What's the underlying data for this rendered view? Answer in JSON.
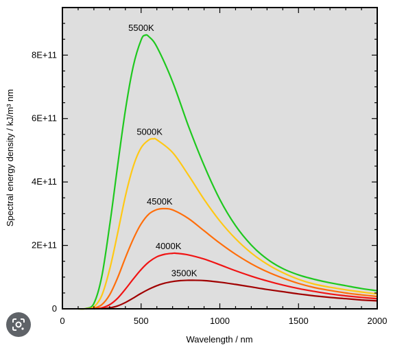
{
  "chart_data": {
    "type": "line",
    "title": "",
    "xlabel": "Wavelength / nm",
    "ylabel": "Spectral energy density / kJ/m³ nm",
    "xlim": [
      0,
      2000
    ],
    "ylim": [
      0,
      950000000000
    ],
    "xticks": [
      0,
      500,
      1000,
      1500,
      2000
    ],
    "xtick_labels": [
      "0",
      "500",
      "1000",
      "1500",
      "2000"
    ],
    "yticks": [
      0,
      200000000000,
      400000000000,
      600000000000,
      800000000000
    ],
    "ytick_labels": [
      "0",
      "2E+11",
      "4E+11",
      "6E+11",
      "8E+11"
    ],
    "background": "#dedede",
    "grid": false,
    "legend": "inline labels at curve peaks",
    "series": [
      {
        "name": "5500K",
        "temperature_K": 5500,
        "color": "#1ec81e",
        "x": [
          100,
          150,
          200,
          250,
          300,
          350,
          400,
          450,
          500,
          527,
          550,
          600,
          700,
          800,
          900,
          1000,
          1100,
          1200,
          1300,
          1400,
          1500,
          1600,
          1700,
          1800,
          1900,
          2000
        ],
        "y": [
          0,
          1000000000,
          17000000000,
          102000000000,
          262000000000,
          448000000000,
          626000000000,
          765000000000,
          848000000000,
          863000000000,
          858000000000,
          826000000000,
          716000000000,
          577000000000,
          452000000000,
          345000000000,
          262000000000,
          201000000000,
          157000000000,
          127000000000,
          107000000000,
          93000000000,
          82000000000,
          73000000000,
          64000000000,
          57000000000
        ]
      },
      {
        "name": "5000K",
        "temperature_K": 5000,
        "color": "#ffc814",
        "x": [
          100,
          150,
          200,
          250,
          300,
          350,
          400,
          450,
          500,
          550,
          580,
          600,
          700,
          800,
          900,
          1000,
          1100,
          1200,
          1300,
          1400,
          1500,
          1600,
          1700,
          1800,
          1900,
          2000
        ],
        "y": [
          0,
          200000000,
          6000000000,
          42000000000,
          124000000000,
          236000000000,
          355000000000,
          449000000000,
          508000000000,
          533000000000,
          536000000000,
          533000000000,
          493000000000,
          422000000000,
          345000000000,
          277000000000,
          221000000000,
          176000000000,
          141000000000,
          114000000000,
          93000000000,
          78000000000,
          68000000000,
          60000000000,
          53000000000,
          47000000000
        ]
      },
      {
        "name": "4500K",
        "temperature_K": 4500,
        "color": "#ff6e0a",
        "x": [
          150,
          200,
          250,
          300,
          350,
          400,
          450,
          500,
          550,
          600,
          644,
          700,
          800,
          900,
          1000,
          1100,
          1200,
          1300,
          1400,
          1500,
          1600,
          1700,
          1800,
          1900,
          2000
        ],
        "y": [
          0,
          2000000000,
          13000000000,
          44000000000,
          97000000000,
          161000000000,
          220000000000,
          268000000000,
          299000000000,
          313000000000,
          316000000000,
          312000000000,
          285000000000,
          246000000000,
          207000000000,
          172000000000,
          142000000000,
          117000000000,
          97000000000,
          80000000000,
          67000000000,
          58000000000,
          50000000000,
          44000000000,
          39000000000
        ]
      },
      {
        "name": "4000K",
        "temperature_K": 4000,
        "color": "#f01414",
        "x": [
          200,
          250,
          300,
          350,
          400,
          450,
          500,
          550,
          600,
          650,
          700,
          724,
          800,
          900,
          1000,
          1100,
          1200,
          1300,
          1400,
          1500,
          1600,
          1700,
          1800,
          1900,
          2000
        ],
        "y": [
          0,
          3000000000,
          13000000000,
          33000000000,
          62000000000,
          94000000000,
          124000000000,
          148000000000,
          164000000000,
          172000000000,
          175000000000,
          175000000000,
          170000000000,
          157000000000,
          139000000000,
          120000000000,
          103000000000,
          88000000000,
          75000000000,
          64000000000,
          55000000000,
          47000000000,
          41000000000,
          36000000000,
          32000000000
        ]
      },
      {
        "name": "3500K",
        "temperature_K": 3500,
        "color": "#a00000",
        "x": [
          250,
          300,
          350,
          400,
          450,
          500,
          550,
          600,
          650,
          700,
          750,
          800,
          828,
          900,
          1000,
          1100,
          1200,
          1300,
          1400,
          1500,
          1600,
          1700,
          1800,
          1900,
          2000
        ],
        "y": [
          0,
          3000000000,
          9000000000,
          20000000000,
          34000000000,
          49000000000,
          62000000000,
          73000000000,
          81000000000,
          86000000000,
          89000000000,
          90000000000,
          90000000000,
          89000000000,
          84000000000,
          77000000000,
          69000000000,
          61000000000,
          54000000000,
          47000000000,
          41000000000,
          36000000000,
          32000000000,
          28000000000,
          25000000000
        ]
      }
    ]
  },
  "overlay": {
    "lens_icon": "google-lens-icon"
  }
}
